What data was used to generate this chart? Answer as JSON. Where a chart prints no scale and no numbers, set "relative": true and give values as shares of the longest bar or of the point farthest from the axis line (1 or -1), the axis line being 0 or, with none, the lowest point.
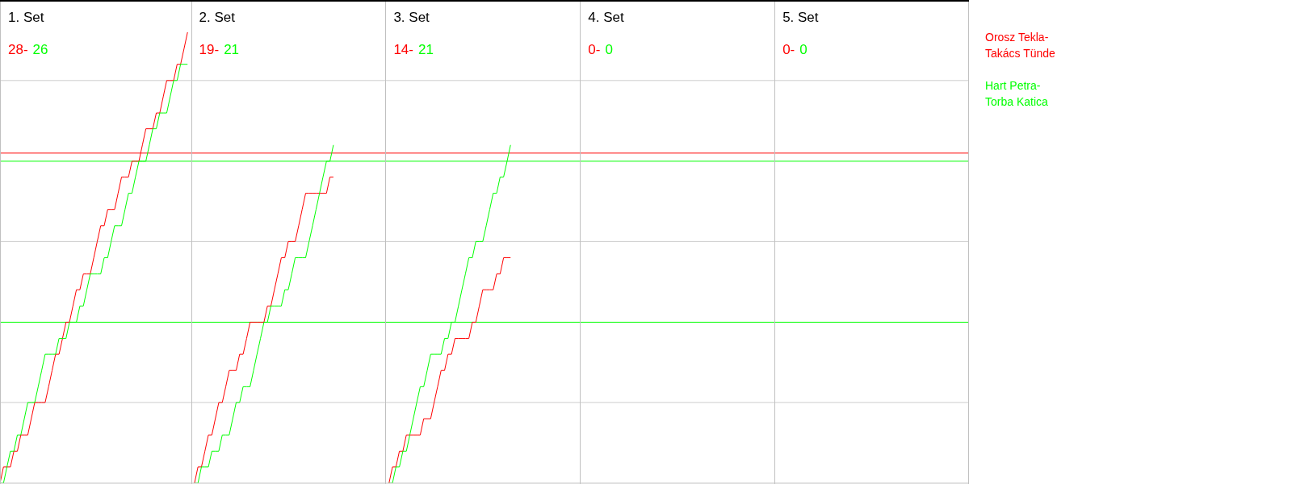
{
  "chart_data": {
    "type": "line",
    "relative": true,
    "annotations": [
      "1. Set",
      "28-",
      "26",
      "2. Set",
      "19-",
      "21",
      "3. Set",
      "14-",
      "21",
      "4. Set",
      "0-",
      "0",
      "5. Set",
      "0-",
      "0"
    ],
    "categories": [
      null,
      null,
      null,
      null,
      null,
      null,
      null,
      null,
      null,
      null,
      null,
      null,
      null,
      null,
      null,
      null,
      null,
      null,
      null,
      null,
      null,
      null,
      null,
      null,
      null,
      null,
      null,
      null,
      null,
      null,
      null,
      null,
      null,
      null,
      null,
      null,
      null,
      null,
      null,
      null,
      null,
      null,
      null,
      null,
      null,
      null,
      null,
      null,
      null,
      null,
      null,
      null,
      null,
      null,
      null,
      null,
      null,
      null,
      null,
      null,
      null,
      null,
      null,
      null,
      null,
      null,
      null,
      null,
      null,
      null,
      null,
      null,
      null,
      null,
      null,
      null,
      null,
      null,
      null,
      null,
      null,
      null,
      null,
      null,
      null,
      null,
      null,
      null,
      null,
      null,
      null,
      null,
      null,
      null,
      null,
      null,
      null,
      null,
      null,
      null,
      null,
      null,
      null,
      null,
      null,
      null,
      null,
      null,
      null,
      null,
      null,
      null,
      null,
      null,
      null,
      null,
      null,
      null,
      null,
      null,
      null,
      null,
      null,
      null,
      null,
      null,
      null,
      null,
      null,
      null,
      null,
      null,
      null,
      null,
      null,
      null,
      null,
      null,
      null,
      null,
      null,
      null,
      null,
      null,
      null,
      null,
      null,
      null,
      null,
      null,
      null,
      null,
      null,
      null,
      null,
      null,
      null,
      null,
      null,
      null,
      null,
      null,
      null,
      null,
      null,
      null,
      null,
      null,
      null,
      null,
      null,
      null,
      null,
      null,
      null,
      null,
      null,
      null,
      null,
      null,
      null,
      null,
      null,
      null,
      null,
      null,
      null,
      null,
      null,
      null,
      null,
      null,
      null,
      null,
      null,
      null,
      null,
      null,
      null,
      null,
      null,
      null,
      null,
      null,
      null,
      null,
      null,
      null,
      null,
      null,
      null,
      null,
      null,
      null,
      null,
      null,
      null,
      null,
      null,
      null,
      null,
      null,
      null,
      null,
      null,
      null,
      null,
      null,
      null,
      null,
      null,
      null,
      null,
      null,
      null,
      null,
      null,
      null,
      null,
      null,
      null,
      null,
      null,
      null,
      null,
      null,
      null,
      null,
      null,
      null,
      null,
      null,
      null,
      null,
      null,
      null,
      null,
      null,
      null,
      null,
      null,
      null,
      null,
      null,
      null,
      null,
      null,
      null,
      null,
      null,
      null,
      null,
      null,
      null,
      null,
      null,
      null,
      null,
      null,
      null
    ],
    "ref_lines": [
      {
        "axis": "y",
        "value": 0.179,
        "color": "#cccccc"
      },
      {
        "axis": "y",
        "value": 0.536,
        "color": "#cccccc"
      },
      {
        "axis": "y",
        "value": 0.893,
        "color": "#cccccc"
      },
      {
        "axis": "y",
        "value": 0.357,
        "color": "#00ff00"
      },
      {
        "axis": "y",
        "value": 0.714,
        "color": "#00ff00"
      },
      {
        "axis": "y",
        "value": 0.732,
        "color": "#ff0000"
      }
    ],
    "series": [
      {
        "name": "Orosz Tekla-Takács Tünde",
        "color": "#ff0000",
        "values": [
          0,
          0.036,
          0.036,
          0.036,
          0.071,
          0.071,
          0.107,
          0.107,
          0.107,
          0.143,
          0.179,
          0.179,
          0.179,
          0.179,
          0.214,
          0.25,
          0.286,
          0.286,
          0.321,
          0.357,
          0.357,
          0.393,
          0.429,
          0.429,
          0.464,
          0.464,
          0.464,
          0.5,
          0.536,
          0.571,
          0.571,
          0.607,
          0.607,
          0.607,
          0.643,
          0.679,
          0.679,
          0.679,
          0.714,
          0.714,
          0.714,
          0.75,
          0.786,
          0.786,
          0.786,
          0.821,
          0.821,
          0.857,
          0.893,
          0.893,
          0.893,
          0.929,
          0.929,
          0.964,
          1,
          null,
          null,
          null,
          null,
          null,
          null,
          null,
          null,
          null,
          null,
          null,
          null,
          null,
          null,
          null,
          null,
          null,
          null,
          null,
          null,
          null,
          null,
          null,
          null,
          null,
          null,
          null,
          null,
          null,
          null,
          null,
          null,
          null,
          null,
          null,
          null,
          null,
          null,
          null,
          null,
          null,
          null,
          null,
          null,
          null,
          null,
          null,
          null,
          null,
          null,
          null,
          null,
          null,
          null,
          null,
          null,
          null,
          null,
          null,
          null,
          null,
          null,
          null,
          null,
          null,
          null,
          null,
          null,
          null,
          null,
          null,
          null,
          null,
          null,
          null,
          null,
          null,
          null,
          null,
          null,
          null,
          null,
          null,
          null,
          null,
          null,
          null,
          null,
          null,
          null,
          null,
          null,
          null,
          null,
          null,
          null,
          null,
          null,
          null,
          null,
          null,
          null,
          null,
          null,
          null,
          null,
          null,
          null,
          null,
          null,
          null,
          null,
          null,
          null,
          null,
          null,
          null,
          null,
          null,
          null,
          null,
          null,
          null,
          null,
          null,
          null,
          null,
          null,
          null,
          null,
          null,
          null,
          null,
          null,
          null,
          null,
          null,
          null,
          null,
          null,
          null,
          null,
          null,
          null,
          null,
          null,
          null,
          null,
          null,
          null,
          null,
          null,
          null,
          null,
          null,
          null,
          null,
          null,
          null,
          null,
          null,
          null,
          null,
          null,
          null,
          null,
          null,
          null,
          null,
          null,
          null,
          null,
          null,
          null,
          null,
          null,
          null,
          null,
          null,
          null,
          null,
          null,
          null,
          null,
          null,
          null,
          null,
          null,
          null,
          null,
          null,
          null,
          null,
          null,
          null,
          null,
          null,
          null,
          null,
          null,
          null,
          null,
          null,
          null,
          null,
          null,
          null,
          null,
          null,
          null,
          null,
          null,
          null,
          null,
          null,
          null,
          null,
          null,
          null,
          null,
          null,
          null,
          null,
          null,
          null
        ]
      },
      {
        "name": "Hart Petra-Torba Katica",
        "color": "#00ff00",
        "values": [
          0,
          0,
          0.036,
          0.071,
          0.071,
          0.107,
          0.107,
          0.143,
          0.179,
          0.179,
          0.179,
          0.214,
          0.25,
          0.286,
          0.286,
          0.286,
          0.286,
          0.321,
          0.321,
          0.321,
          0.357,
          0.357,
          0.357,
          0.393,
          0.393,
          0.429,
          0.464,
          0.464,
          0.464,
          0.464,
          0.5,
          0.5,
          0.536,
          0.571,
          0.571,
          0.571,
          0.607,
          0.643,
          0.643,
          0.679,
          0.714,
          0.714,
          0.714,
          0.75,
          0.786,
          0.786,
          0.821,
          0.821,
          0.821,
          0.857,
          0.893,
          0.893,
          0.929,
          0.929,
          0.929,
          null,
          null,
          null,
          null,
          null,
          null,
          null,
          null,
          null,
          null,
          null,
          null,
          null,
          null,
          null,
          null,
          null,
          null,
          null,
          null,
          null,
          null,
          null,
          null,
          null,
          null,
          null,
          null,
          null,
          null,
          null,
          null,
          null,
          null,
          null,
          null,
          null,
          null,
          null,
          null,
          null,
          null,
          null,
          null,
          null,
          null,
          null,
          null,
          null,
          null,
          null,
          null,
          null,
          null,
          null,
          null,
          null,
          null,
          null,
          null,
          null,
          null,
          null,
          null,
          null,
          null,
          null,
          null,
          null,
          null,
          null,
          null,
          null,
          null,
          null,
          null,
          null,
          null,
          null,
          null,
          null,
          null,
          null,
          null,
          null,
          null,
          null,
          null,
          null,
          null,
          null,
          null,
          null,
          null,
          null,
          null,
          null,
          null,
          null,
          null,
          null,
          null,
          null,
          null,
          null,
          null,
          null,
          null,
          null,
          null,
          null,
          null,
          null,
          null,
          null,
          null,
          null,
          null,
          null,
          null,
          null,
          null,
          null,
          null,
          null,
          null,
          null,
          null,
          null,
          null,
          null,
          null,
          null,
          null,
          null,
          null,
          null,
          null,
          null,
          null,
          null,
          null,
          null,
          null,
          null,
          null,
          null,
          null,
          null,
          null,
          null,
          null,
          null,
          null,
          null,
          null,
          null,
          null,
          null,
          null,
          null,
          null,
          null,
          null,
          null,
          null,
          null,
          null,
          null,
          null,
          null,
          null,
          null,
          null,
          null,
          null,
          null,
          null,
          null,
          null,
          null,
          null,
          null,
          null,
          null,
          null,
          null,
          null,
          null,
          null,
          null,
          null,
          null,
          null,
          null,
          null,
          null,
          null,
          null,
          null,
          null,
          null,
          null,
          null,
          null,
          null,
          null,
          null,
          null,
          null,
          null,
          null,
          null,
          null,
          null,
          null,
          null,
          null,
          null,
          null,
          null,
          null,
          null,
          null,
          null
        ]
      },
      {
        "color": "#ff0000",
        "values": [
          null,
          null,
          null,
          null,
          null,
          null,
          null,
          null,
          null,
          null,
          null,
          null,
          null,
          null,
          null,
          null,
          null,
          null,
          null,
          null,
          null,
          null,
          null,
          null,
          null,
          null,
          null,
          null,
          null,
          null,
          null,
          null,
          null,
          null,
          null,
          null,
          null,
          null,
          null,
          null,
          null,
          null,
          null,
          null,
          null,
          null,
          null,
          null,
          null,
          null,
          null,
          null,
          null,
          null,
          null,
          null,
          0,
          0.036,
          0.036,
          0.071,
          0.107,
          0.107,
          0.143,
          0.179,
          0.179,
          0.214,
          0.25,
          0.25,
          0.25,
          0.286,
          0.286,
          0.321,
          0.357,
          0.357,
          0.357,
          0.357,
          0.357,
          0.393,
          0.393,
          0.429,
          0.464,
          0.5,
          0.5,
          0.536,
          0.536,
          0.536,
          0.571,
          0.607,
          0.643,
          0.643,
          0.643,
          0.643,
          0.643,
          0.643,
          0.643,
          0.679,
          0.679,
          null,
          null,
          null,
          null,
          null,
          null,
          null,
          null,
          null,
          null,
          null,
          null,
          null,
          null,
          null,
          null,
          null,
          null,
          null,
          null,
          null,
          null,
          null,
          null,
          null,
          null,
          null,
          null,
          null,
          null,
          null,
          null,
          null,
          null,
          null,
          null,
          null,
          null,
          null,
          null,
          null,
          null,
          null,
          null,
          null,
          null,
          null,
          null,
          null,
          null,
          null,
          null,
          null,
          null,
          null,
          null,
          null,
          null,
          null,
          null,
          null,
          null,
          null,
          null,
          null,
          null,
          null,
          null,
          null,
          null,
          null,
          null,
          null,
          null,
          null,
          null,
          null,
          null,
          null,
          null,
          null,
          null,
          null,
          null,
          null,
          null,
          null,
          null,
          null,
          null,
          null,
          null,
          null,
          null,
          null,
          null,
          null,
          null,
          null,
          null,
          null,
          null,
          null,
          null,
          null,
          null,
          null,
          null,
          null,
          null,
          null,
          null,
          null,
          null,
          null,
          null,
          null,
          null,
          null,
          null,
          null,
          null,
          null,
          null,
          null,
          null,
          null,
          null,
          null,
          null,
          null,
          null,
          null,
          null,
          null,
          null,
          null,
          null,
          null,
          null,
          null,
          null,
          null,
          null,
          null,
          null,
          null,
          null,
          null,
          null,
          null,
          null,
          null,
          null,
          null,
          null,
          null,
          null,
          null,
          null,
          null,
          null,
          null,
          null,
          null,
          null,
          null,
          null,
          null,
          null,
          null,
          null,
          null,
          null,
          null,
          null,
          null,
          null,
          null,
          null,
          null,
          null,
          null
        ]
      },
      {
        "color": "#00ff00",
        "values": [
          null,
          null,
          null,
          null,
          null,
          null,
          null,
          null,
          null,
          null,
          null,
          null,
          null,
          null,
          null,
          null,
          null,
          null,
          null,
          null,
          null,
          null,
          null,
          null,
          null,
          null,
          null,
          null,
          null,
          null,
          null,
          null,
          null,
          null,
          null,
          null,
          null,
          null,
          null,
          null,
          null,
          null,
          null,
          null,
          null,
          null,
          null,
          null,
          null,
          null,
          null,
          null,
          null,
          null,
          null,
          null,
          0,
          0,
          0.036,
          0.036,
          0.036,
          0.071,
          0.071,
          0.071,
          0.107,
          0.107,
          0.107,
          0.143,
          0.179,
          0.179,
          0.214,
          0.214,
          0.214,
          0.25,
          0.286,
          0.321,
          0.357,
          0.357,
          0.393,
          0.393,
          0.393,
          0.393,
          0.429,
          0.429,
          0.464,
          0.5,
          0.5,
          0.5,
          0.5,
          0.536,
          0.571,
          0.607,
          0.643,
          0.679,
          0.714,
          0.714,
          0.75,
          null,
          null,
          null,
          null,
          null,
          null,
          null,
          null,
          null,
          null,
          null,
          null,
          null,
          null,
          null,
          null,
          null,
          null,
          null,
          null,
          null,
          null,
          null,
          null,
          null,
          null,
          null,
          null,
          null,
          null,
          null,
          null,
          null,
          null,
          null,
          null,
          null,
          null,
          null,
          null,
          null,
          null,
          null,
          null,
          null,
          null,
          null,
          null,
          null,
          null,
          null,
          null,
          null,
          null,
          null,
          null,
          null,
          null,
          null,
          null,
          null,
          null,
          null,
          null,
          null,
          null,
          null,
          null,
          null,
          null,
          null,
          null,
          null,
          null,
          null,
          null,
          null,
          null,
          null,
          null,
          null,
          null,
          null,
          null,
          null,
          null,
          null,
          null,
          null,
          null,
          null,
          null,
          null,
          null,
          null,
          null,
          null,
          null,
          null,
          null,
          null,
          null,
          null,
          null,
          null,
          null,
          null,
          null,
          null,
          null,
          null,
          null,
          null,
          null,
          null,
          null,
          null,
          null,
          null,
          null,
          null,
          null,
          null,
          null,
          null,
          null,
          null,
          null,
          null,
          null,
          null,
          null,
          null,
          null,
          null,
          null,
          null,
          null,
          null,
          null,
          null,
          null,
          null,
          null,
          null,
          null,
          null,
          null,
          null,
          null,
          null,
          null,
          null,
          null,
          null,
          null,
          null,
          null,
          null,
          null,
          null,
          null,
          null,
          null,
          null,
          null,
          null,
          null,
          null,
          null,
          null,
          null,
          null,
          null,
          null,
          null,
          null,
          null,
          null,
          null,
          null,
          null,
          null
        ]
      },
      {
        "color": "#ff0000",
        "values": [
          null,
          null,
          null,
          null,
          null,
          null,
          null,
          null,
          null,
          null,
          null,
          null,
          null,
          null,
          null,
          null,
          null,
          null,
          null,
          null,
          null,
          null,
          null,
          null,
          null,
          null,
          null,
          null,
          null,
          null,
          null,
          null,
          null,
          null,
          null,
          null,
          null,
          null,
          null,
          null,
          null,
          null,
          null,
          null,
          null,
          null,
          null,
          null,
          null,
          null,
          null,
          null,
          null,
          null,
          null,
          null,
          null,
          null,
          null,
          null,
          null,
          null,
          null,
          null,
          null,
          null,
          null,
          null,
          null,
          null,
          null,
          null,
          null,
          null,
          null,
          null,
          null,
          null,
          null,
          null,
          null,
          null,
          null,
          null,
          null,
          null,
          null,
          null,
          null,
          null,
          null,
          null,
          null,
          null,
          null,
          null,
          null,
          null,
          null,
          null,
          null,
          null,
          null,
          null,
          null,
          null,
          null,
          null,
          null,
          null,
          null,
          null,
          0,
          0.036,
          0.036,
          0.071,
          0.071,
          0.107,
          0.107,
          0.107,
          0.107,
          0.107,
          0.143,
          0.143,
          0.143,
          0.179,
          0.214,
          0.25,
          0.25,
          0.286,
          0.286,
          0.321,
          0.321,
          0.321,
          0.321,
          0.321,
          0.357,
          0.357,
          0.393,
          0.429,
          0.429,
          0.429,
          0.429,
          0.464,
          0.464,
          0.5,
          0.5,
          0.5,
          null,
          null,
          null,
          null,
          null,
          null,
          null,
          null,
          null,
          null,
          null,
          null,
          null,
          null,
          null,
          null,
          null,
          null,
          null,
          null,
          null,
          null,
          null,
          null,
          null,
          null,
          null,
          null,
          null,
          null,
          null,
          null,
          null,
          null,
          null,
          null,
          null,
          null,
          null,
          null,
          null,
          null,
          null,
          null,
          null,
          null,
          null,
          null,
          null,
          null,
          null,
          null,
          null,
          null,
          null,
          null,
          null,
          null,
          null,
          null,
          null,
          null,
          null,
          null,
          null,
          null,
          null,
          null,
          null,
          null,
          null,
          null,
          null,
          null,
          null,
          null,
          null,
          null,
          null,
          null,
          null,
          null,
          null,
          null,
          null,
          null,
          null,
          null,
          null,
          null,
          null,
          null,
          null,
          null,
          null,
          null,
          null,
          null,
          null,
          null,
          null,
          null,
          null,
          null,
          null,
          null,
          null,
          null,
          null,
          null,
          null,
          null,
          null,
          null,
          null,
          null,
          null,
          null,
          null,
          null,
          null,
          null,
          null,
          null,
          null,
          null,
          null,
          null,
          null,
          null,
          null,
          null
        ]
      },
      {
        "color": "#00ff00",
        "values": [
          null,
          null,
          null,
          null,
          null,
          null,
          null,
          null,
          null,
          null,
          null,
          null,
          null,
          null,
          null,
          null,
          null,
          null,
          null,
          null,
          null,
          null,
          null,
          null,
          null,
          null,
          null,
          null,
          null,
          null,
          null,
          null,
          null,
          null,
          null,
          null,
          null,
          null,
          null,
          null,
          null,
          null,
          null,
          null,
          null,
          null,
          null,
          null,
          null,
          null,
          null,
          null,
          null,
          null,
          null,
          null,
          null,
          null,
          null,
          null,
          null,
          null,
          null,
          null,
          null,
          null,
          null,
          null,
          null,
          null,
          null,
          null,
          null,
          null,
          null,
          null,
          null,
          null,
          null,
          null,
          null,
          null,
          null,
          null,
          null,
          null,
          null,
          null,
          null,
          null,
          null,
          null,
          null,
          null,
          null,
          null,
          null,
          null,
          null,
          null,
          null,
          null,
          null,
          null,
          null,
          null,
          null,
          null,
          null,
          null,
          null,
          null,
          0,
          0,
          0.036,
          0.036,
          0.071,
          0.071,
          0.107,
          0.143,
          0.179,
          0.214,
          0.214,
          0.25,
          0.286,
          0.286,
          0.286,
          0.286,
          0.321,
          0.321,
          0.357,
          0.357,
          0.393,
          0.429,
          0.464,
          0.5,
          0.5,
          0.536,
          0.536,
          0.536,
          0.571,
          0.607,
          0.643,
          0.643,
          0.679,
          0.679,
          0.714,
          0.75,
          null,
          null,
          null,
          null,
          null,
          null,
          null,
          null,
          null,
          null,
          null,
          null,
          null,
          null,
          null,
          null,
          null,
          null,
          null,
          null,
          null,
          null,
          null,
          null,
          null,
          null,
          null,
          null,
          null,
          null,
          null,
          null,
          null,
          null,
          null,
          null,
          null,
          null,
          null,
          null,
          null,
          null,
          null,
          null,
          null,
          null,
          null,
          null,
          null,
          null,
          null,
          null,
          null,
          null,
          null,
          null,
          null,
          null,
          null,
          null,
          null,
          null,
          null,
          null,
          null,
          null,
          null,
          null,
          null,
          null,
          null,
          null,
          null,
          null,
          null,
          null,
          null,
          null,
          null,
          null,
          null,
          null,
          null,
          null,
          null,
          null,
          null,
          null,
          null,
          null,
          null,
          null,
          null,
          null,
          null,
          null,
          null,
          null,
          null,
          null,
          null,
          null,
          null,
          null,
          null,
          null,
          null,
          null,
          null,
          null,
          null,
          null,
          null,
          null,
          null,
          null,
          null,
          null,
          null,
          null,
          null,
          null,
          null,
          null,
          null,
          null,
          null,
          null,
          null,
          null,
          null,
          null
        ]
      }
    ]
  }
}
